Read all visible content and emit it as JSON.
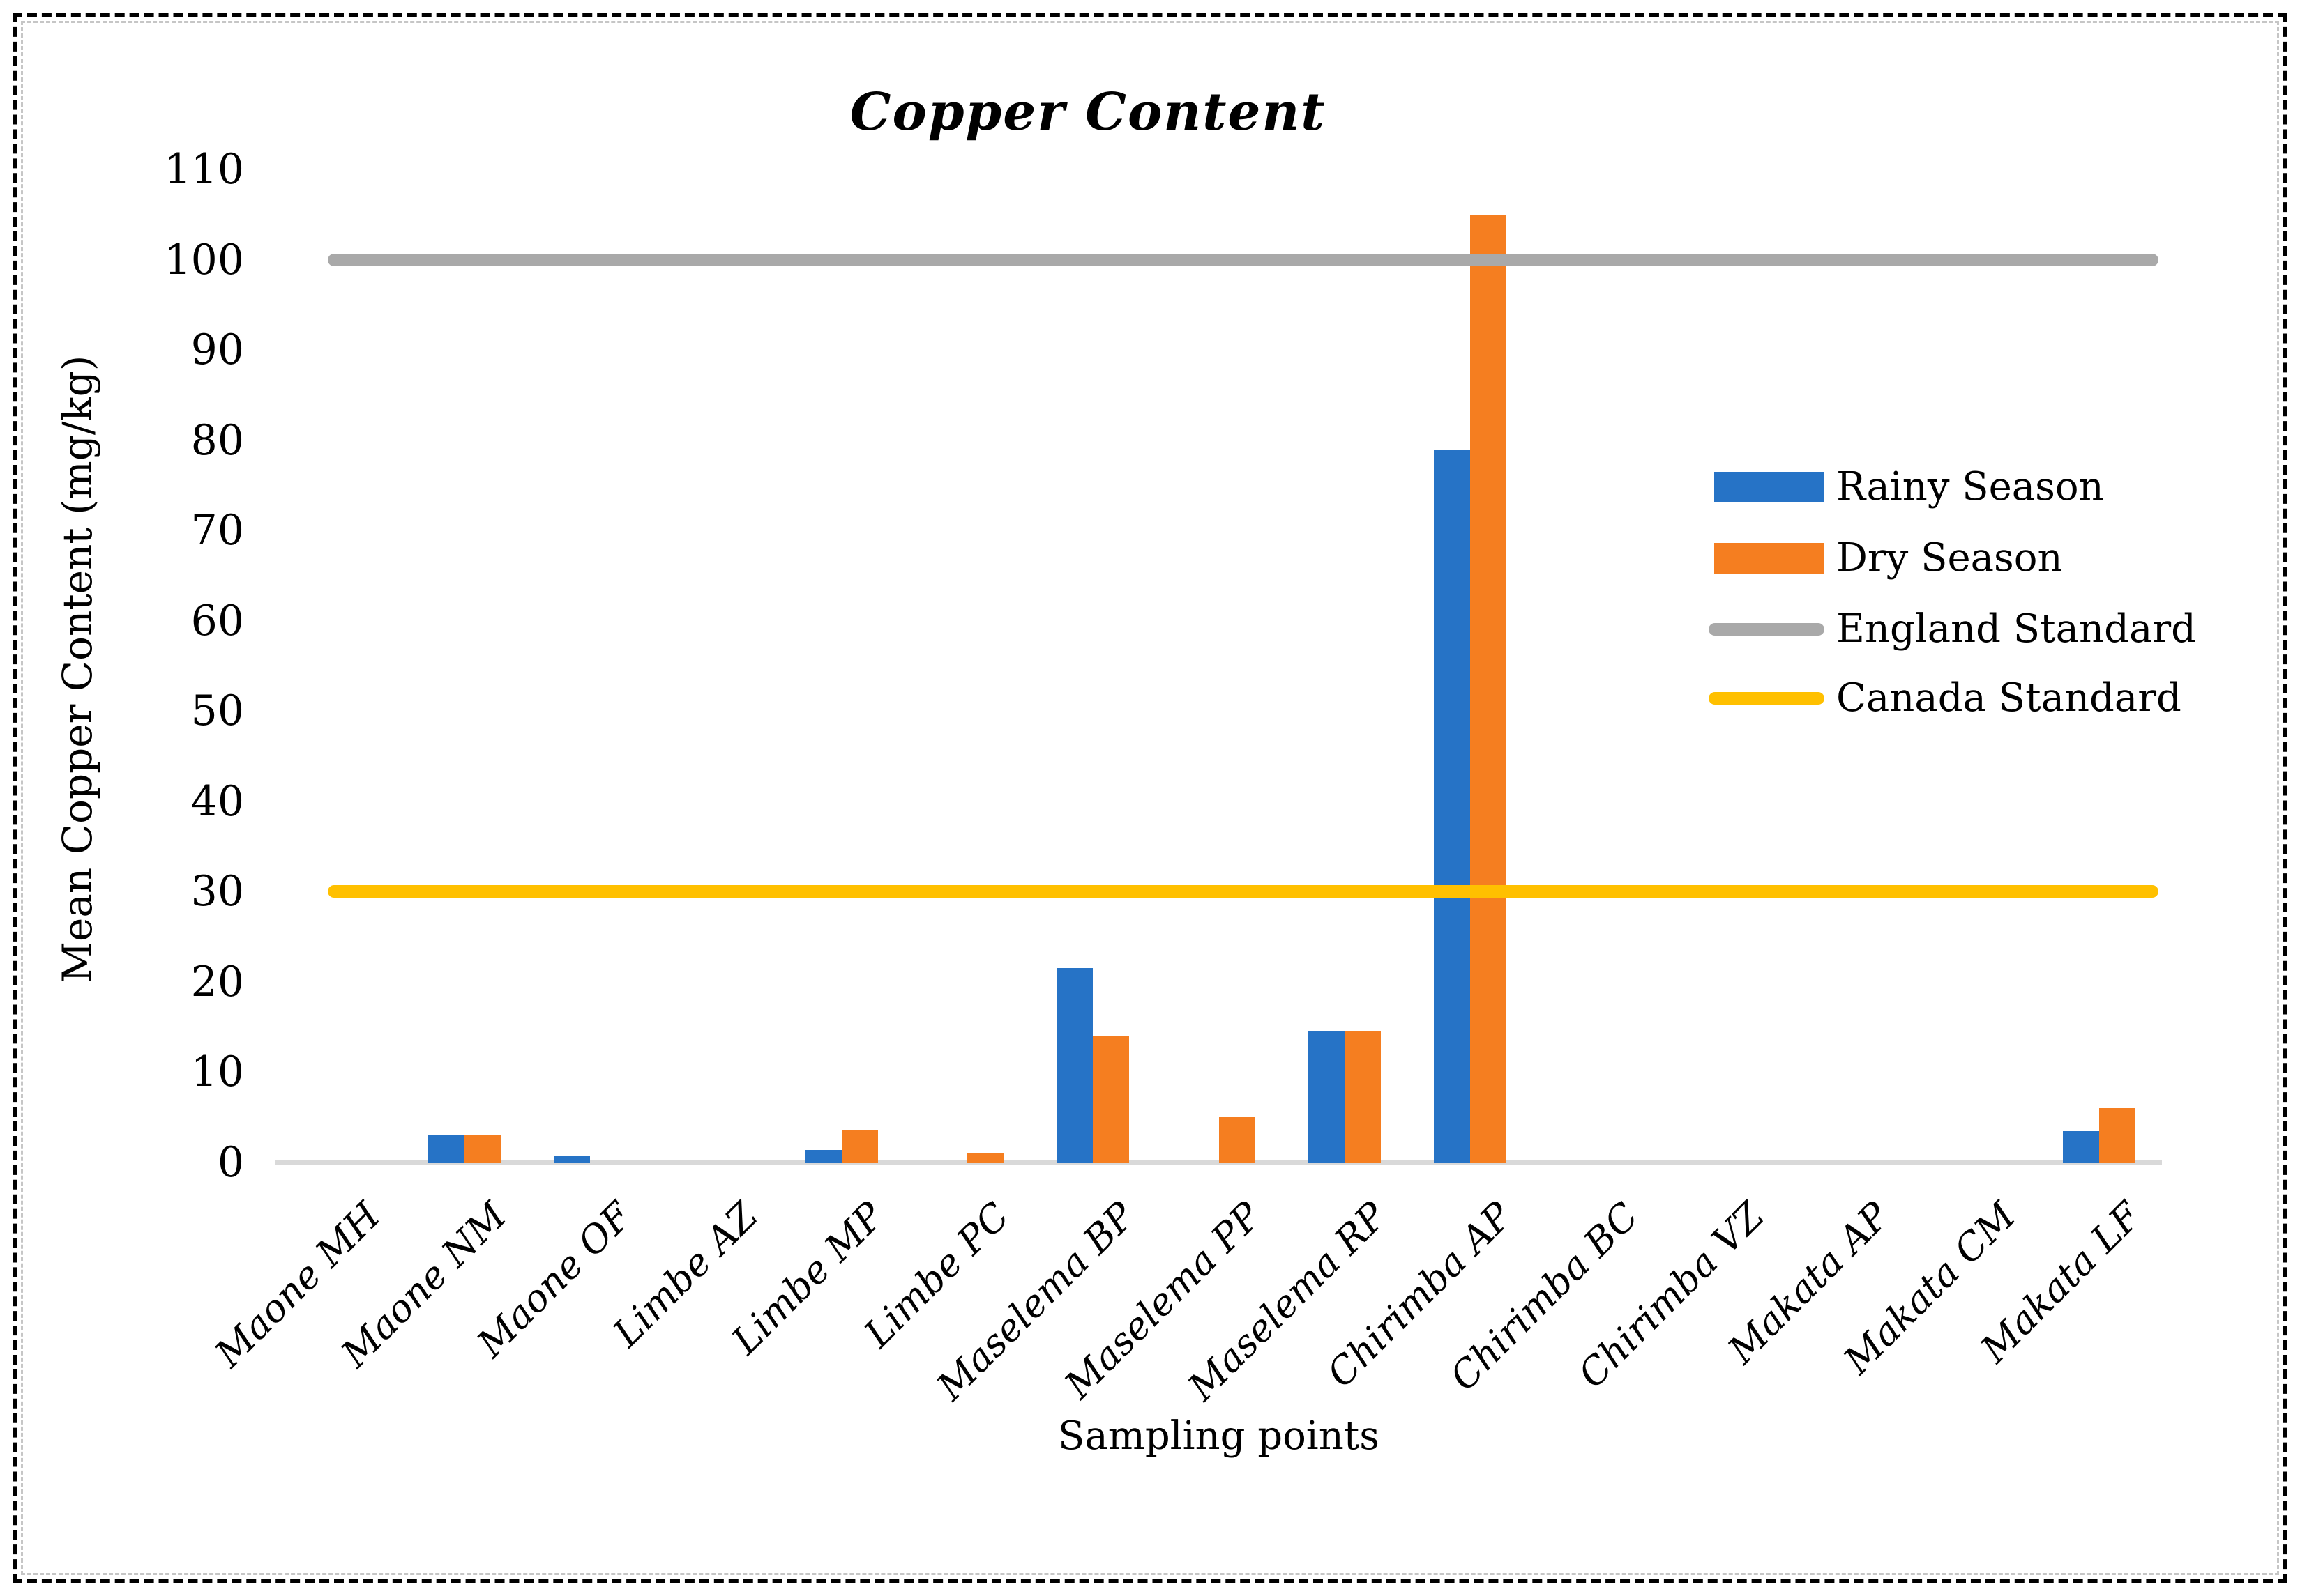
{
  "figure": {
    "title": "Copper Content",
    "y_axis_label": "Mean Copper Content (mg/kg)",
    "x_axis_label": "Sampling points"
  },
  "colors": {
    "rainy_blue": "#2673C6",
    "dry_orange": "#F57E20",
    "england_gray": "#A9A9A9",
    "canada_gold": "#FFC000",
    "axis_line_gray": "#D9D9D9",
    "text_black": "#000000"
  },
  "chart_data": {
    "type": "bar",
    "title": "Copper Content",
    "xlabel": "Sampling points",
    "ylabel": "Mean Copper Content (mg/kg)",
    "ylim": [
      0,
      110
    ],
    "yticks": [
      0,
      10,
      20,
      30,
      40,
      50,
      60,
      70,
      80,
      90,
      100,
      110
    ],
    "grid": false,
    "legend_position": "inside-right",
    "categories": [
      "Maone MH",
      "Maone NM",
      "Maone OF",
      "Limbe AZ",
      "Limbe MP",
      "Limbe PC",
      "Maselema BP",
      "Maselema PP",
      "Maselema RP",
      "Chirimba AP",
      "Chirimba BC",
      "Chirimba VZ",
      "Makata AP",
      "Makata CM",
      "Makata LF"
    ],
    "series": [
      {
        "name": "Rainy Season",
        "kind": "bar",
        "color": "#2673C6",
        "values": [
          0,
          3,
          0.8,
          0,
          1.4,
          0,
          21.5,
          0,
          14.5,
          79,
          0,
          0,
          0,
          0,
          3.5
        ]
      },
      {
        "name": "Dry Season",
        "kind": "bar",
        "color": "#F57E20",
        "values": [
          0,
          3,
          0,
          0,
          3.6,
          1.1,
          14,
          5,
          14.5,
          105,
          0,
          0,
          0,
          0,
          6
        ]
      },
      {
        "name": "England Standard",
        "kind": "hline",
        "color": "#A9A9A9",
        "value": 100
      },
      {
        "name": "Canada Standard",
        "kind": "hline",
        "color": "#FFC000",
        "value": 30
      }
    ]
  },
  "legend": {
    "entries": [
      {
        "label": "Rainy Season",
        "swatch": "bar",
        "color": "#2673C6"
      },
      {
        "label": "Dry Season",
        "swatch": "bar",
        "color": "#F57E20"
      },
      {
        "label": "England Standard",
        "swatch": "line",
        "color": "#A9A9A9"
      },
      {
        "label": "Canada Standard",
        "swatch": "line",
        "color": "#FFC000"
      }
    ]
  }
}
